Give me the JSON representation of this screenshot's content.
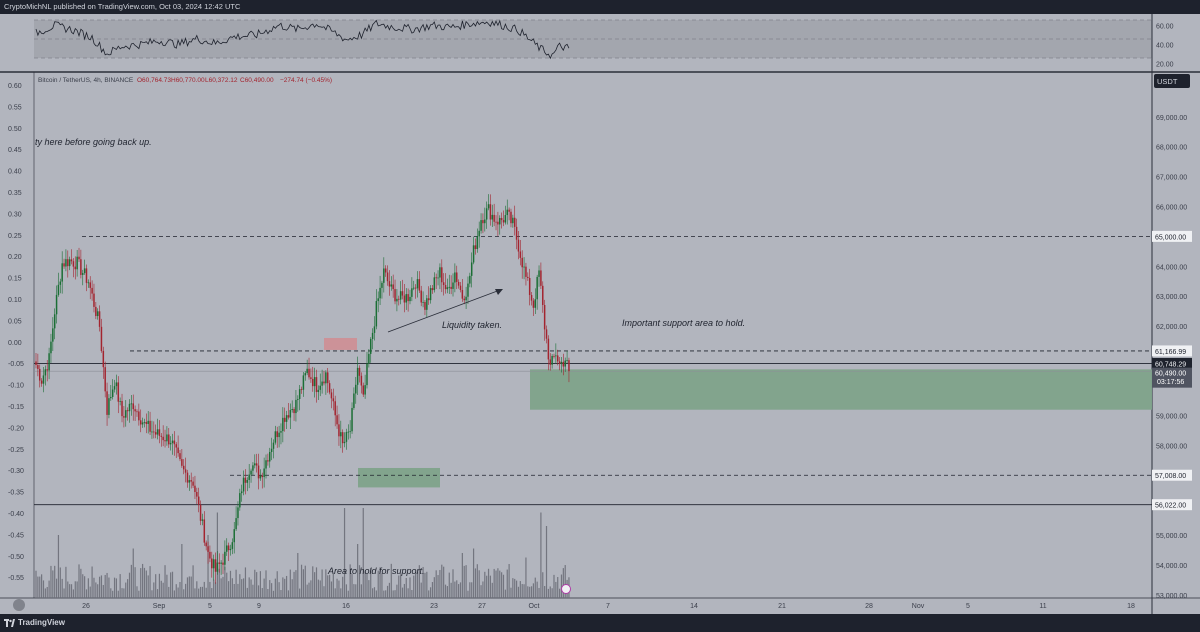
{
  "header": {
    "publish_line": "CryptoMichNL published on TradingView.com, Oct 03, 2024 12:42 UTC"
  },
  "footer": {
    "brand": "TradingView"
  },
  "colors": {
    "background": "#b2b5be",
    "up_candle": "#1b6e35",
    "down_candle": "#a3242f",
    "support_zone": "#7fa38a",
    "resistance_zone": "#d08c92",
    "dark_bar": "#1e222d"
  },
  "symbol_info": {
    "pair": "Bitcoin / TetherUS, 4h, BINANCE",
    "open": "O60,764.73",
    "high": "H60,770.00",
    "low": "L60,372.12",
    "close": "C60,490.00",
    "change": "−274.74 (−0.45%)"
  },
  "currency_badge": "USDT",
  "annotations": {
    "top_note": "ty here before going back up.",
    "liquidity": "Liquidity taken.",
    "support_note": "Important support area to hold.",
    "area_note": "Area to hold for support."
  },
  "price_labels": {
    "resistance": "65,000.00",
    "level_a": "61,166.99",
    "level_b": "60,748.29",
    "current": "60,490.00",
    "countdown": "03:17:56",
    "support_1": "57,008.00",
    "support_2": "56,022.00"
  },
  "chart_data": {
    "type": "candlestick",
    "symbol": "Bitcoin / TetherUS",
    "timeframe": "4h",
    "exchange": "BINANCE",
    "right_axis": {
      "ticks": [
        "69,000.00",
        "68,000.00",
        "67,000.00",
        "66,000.00",
        "64,000.00",
        "63,000.00",
        "62,000.00",
        "59,000.00",
        "58,000.00",
        "55,000.00",
        "54,000.00",
        "53,000.00"
      ],
      "ylim": [
        52900,
        70500
      ]
    },
    "left_axis": {
      "ticks": [
        "0.60",
        "0.55",
        "0.50",
        "0.45",
        "0.40",
        "0.35",
        "0.30",
        "0.25",
        "0.20",
        "0.15",
        "0.10",
        "0.05",
        "0.00",
        "-0.05",
        "-0.10",
        "-0.15",
        "-0.20",
        "-0.25",
        "-0.30",
        "-0.35",
        "-0.40",
        "-0.45",
        "-0.50",
        "-0.55"
      ]
    },
    "x_axis": {
      "ticks": [
        "26",
        "Sep",
        "5",
        "9",
        "16",
        "23",
        "27",
        "Oct",
        "7",
        "14",
        "21",
        "28",
        "Nov",
        "5",
        "11",
        "18"
      ]
    },
    "rsi_panel": {
      "ticks": [
        "60.00",
        "40.00",
        "20.00"
      ],
      "ylim": [
        15,
        70
      ],
      "band": [
        30,
        70
      ]
    },
    "horizontal_levels": [
      {
        "price": 65000,
        "style": "dashed"
      },
      {
        "price": 61166.99,
        "style": "dashed"
      },
      {
        "price": 60748.29,
        "style": "solid"
      },
      {
        "price": 57008,
        "style": "dashed"
      },
      {
        "price": 56022,
        "style": "solid"
      }
    ],
    "zones": [
      {
        "name": "support-zone-main",
        "from_price": 59200,
        "to_price": 60550
      },
      {
        "name": "support-zone-lower",
        "from_price": 56600,
        "to_price": 57250
      },
      {
        "name": "resistance-box",
        "from_price": 61200,
        "to_price": 61600
      }
    ],
    "anchors": [
      {
        "i": 0,
        "p": 60700
      },
      {
        "i": 3,
        "p": 60200
      },
      {
        "i": 7,
        "p": 60900
      },
      {
        "i": 10,
        "p": 62500
      },
      {
        "i": 14,
        "p": 64100
      },
      {
        "i": 18,
        "p": 64200
      },
      {
        "i": 22,
        "p": 64100
      },
      {
        "i": 28,
        "p": 63500
      },
      {
        "i": 34,
        "p": 62000
      },
      {
        "i": 38,
        "p": 59200
      },
      {
        "i": 42,
        "p": 60200
      },
      {
        "i": 46,
        "p": 59000
      },
      {
        "i": 52,
        "p": 59400
      },
      {
        "i": 58,
        "p": 58700
      },
      {
        "i": 64,
        "p": 58400
      },
      {
        "i": 72,
        "p": 58200
      },
      {
        "i": 78,
        "p": 57200
      },
      {
        "i": 84,
        "p": 56800
      },
      {
        "i": 88,
        "p": 55600
      },
      {
        "i": 92,
        "p": 54400
      },
      {
        "i": 96,
        "p": 53800
      },
      {
        "i": 101,
        "p": 54300
      },
      {
        "i": 106,
        "p": 55100
      },
      {
        "i": 110,
        "p": 56600
      },
      {
        "i": 115,
        "p": 57400
      },
      {
        "i": 120,
        "p": 57000
      },
      {
        "i": 127,
        "p": 58200
      },
      {
        "i": 133,
        "p": 59000
      },
      {
        "i": 139,
        "p": 59400
      },
      {
        "i": 145,
        "p": 60500
      },
      {
        "i": 150,
        "p": 60000
      },
      {
        "i": 155,
        "p": 60400
      },
      {
        "i": 160,
        "p": 59000
      },
      {
        "i": 164,
        "p": 58000
      },
      {
        "i": 168,
        "p": 58500
      },
      {
        "i": 172,
        "p": 60600
      },
      {
        "i": 175,
        "p": 59500
      },
      {
        "i": 178,
        "p": 61000
      },
      {
        "i": 182,
        "p": 62600
      },
      {
        "i": 186,
        "p": 63800
      },
      {
        "i": 190,
        "p": 63200
      },
      {
        "i": 194,
        "p": 62900
      },
      {
        "i": 199,
        "p": 63000
      },
      {
        "i": 203,
        "p": 63500
      },
      {
        "i": 208,
        "p": 62700
      },
      {
        "i": 212,
        "p": 63300
      },
      {
        "i": 216,
        "p": 63800
      },
      {
        "i": 220,
        "p": 63100
      },
      {
        "i": 224,
        "p": 63800
      },
      {
        "i": 228,
        "p": 63000
      },
      {
        "i": 231,
        "p": 63300
      },
      {
        "i": 234,
        "p": 64500
      },
      {
        "i": 238,
        "p": 65600
      },
      {
        "i": 242,
        "p": 65900
      },
      {
        "i": 245,
        "p": 65600
      },
      {
        "i": 248,
        "p": 65500
      },
      {
        "i": 252,
        "p": 65700
      },
      {
        "i": 255,
        "p": 65400
      },
      {
        "i": 258,
        "p": 64700
      },
      {
        "i": 262,
        "p": 63600
      },
      {
        "i": 266,
        "p": 62700
      },
      {
        "i": 269,
        "p": 63800
      },
      {
        "i": 272,
        "p": 62000
      },
      {
        "i": 275,
        "p": 60600
      },
      {
        "i": 278,
        "p": 61100
      },
      {
        "i": 280,
        "p": 60700
      },
      {
        "i": 283,
        "p": 60900
      },
      {
        "i": 285,
        "p": 60490
      }
    ],
    "rsi_anchors": [
      {
        "i": 0,
        "v": 52
      },
      {
        "i": 10,
        "v": 60
      },
      {
        "i": 20,
        "v": 55
      },
      {
        "i": 30,
        "v": 47
      },
      {
        "i": 38,
        "v": 30
      },
      {
        "i": 46,
        "v": 38
      },
      {
        "i": 56,
        "v": 40
      },
      {
        "i": 66,
        "v": 44
      },
      {
        "i": 76,
        "v": 40
      },
      {
        "i": 86,
        "v": 46
      },
      {
        "i": 96,
        "v": 41
      },
      {
        "i": 106,
        "v": 48
      },
      {
        "i": 118,
        "v": 50
      },
      {
        "i": 130,
        "v": 60
      },
      {
        "i": 140,
        "v": 56
      },
      {
        "i": 150,
        "v": 62
      },
      {
        "i": 158,
        "v": 54
      },
      {
        "i": 166,
        "v": 45
      },
      {
        "i": 174,
        "v": 50
      },
      {
        "i": 182,
        "v": 62
      },
      {
        "i": 192,
        "v": 58
      },
      {
        "i": 202,
        "v": 56
      },
      {
        "i": 212,
        "v": 60
      },
      {
        "i": 222,
        "v": 58
      },
      {
        "i": 232,
        "v": 62
      },
      {
        "i": 242,
        "v": 64
      },
      {
        "i": 250,
        "v": 60
      },
      {
        "i": 258,
        "v": 55
      },
      {
        "i": 264,
        "v": 45
      },
      {
        "i": 270,
        "v": 35
      },
      {
        "i": 276,
        "v": 28
      },
      {
        "i": 280,
        "v": 38
      },
      {
        "i": 285,
        "v": 36
      }
    ],
    "volume_spikes": [
      {
        "i": 12,
        "v": 0.7
      },
      {
        "i": 30,
        "v": 0.35
      },
      {
        "i": 52,
        "v": 0.55
      },
      {
        "i": 78,
        "v": 0.6
      },
      {
        "i": 92,
        "v": 0.7
      },
      {
        "i": 97,
        "v": 0.95
      },
      {
        "i": 140,
        "v": 0.5
      },
      {
        "i": 165,
        "v": 1.0
      },
      {
        "i": 172,
        "v": 0.6
      },
      {
        "i": 175,
        "v": 1.0
      },
      {
        "i": 228,
        "v": 0.5
      },
      {
        "i": 234,
        "v": 0.55
      },
      {
        "i": 262,
        "v": 0.45
      },
      {
        "i": 270,
        "v": 0.95
      },
      {
        "i": 273,
        "v": 0.8
      }
    ]
  }
}
